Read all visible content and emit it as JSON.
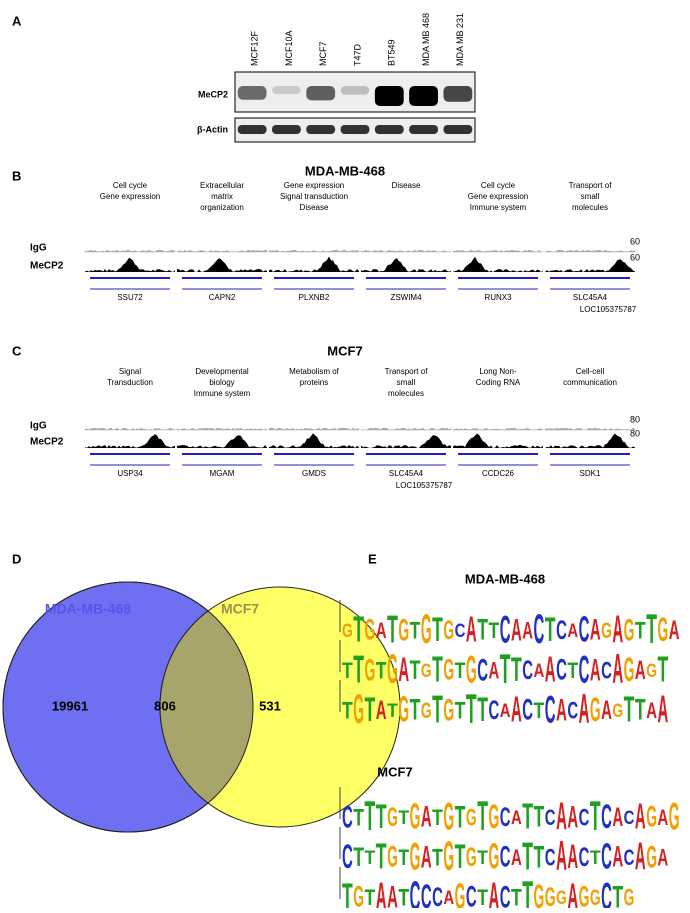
{
  "panel_a": {
    "label": "A",
    "lanes": [
      "MCF12F",
      "MCF10A",
      "MCF7",
      "T47D",
      "BT549",
      "MDA MB 468",
      "MDA MB 231"
    ],
    "rows": [
      "MeCP2",
      "β-Actin"
    ]
  },
  "panel_b": {
    "label": "B",
    "title": "MDA-MB-468",
    "tracks": [
      "IgG",
      "MeCP2"
    ],
    "scales": [
      "60",
      "60"
    ],
    "regions": [
      {
        "pathway": [
          "Cell cycle",
          "Gene expression"
        ],
        "genes": [
          "SSU72"
        ]
      },
      {
        "pathway": [
          "Extracellular",
          "matrix",
          "organization"
        ],
        "genes": [
          "CAPN2"
        ]
      },
      {
        "pathway": [
          "Gene expression",
          "Signal transduction",
          "Disease"
        ],
        "genes": [
          "PLXNB2"
        ]
      },
      {
        "pathway": [
          "Disease"
        ],
        "genes": [
          "ZSWIM4"
        ]
      },
      {
        "pathway": [
          "Cell cycle",
          "Gene expression",
          "Immune system"
        ],
        "genes": [
          "RUNX3"
        ]
      },
      {
        "pathway": [
          "Transport of",
          "small",
          "molecules"
        ],
        "genes": [
          "SLC45A4",
          "LOC105375787"
        ]
      }
    ]
  },
  "panel_c": {
    "label": "C",
    "title": "MCF7",
    "tracks": [
      "IgG",
      "MeCP2"
    ],
    "scales": [
      "80",
      "80"
    ],
    "regions": [
      {
        "pathway": [
          "Signal",
          "Transduction"
        ],
        "genes": [
          "USP34"
        ]
      },
      {
        "pathway": [
          "Developmental",
          "biology",
          "Immune system"
        ],
        "genes": [
          "MGAM"
        ]
      },
      {
        "pathway": [
          "Metabolism of",
          "proteins"
        ],
        "genes": [
          "GMDS"
        ]
      },
      {
        "pathway": [
          "Transport of",
          "small",
          "molecules"
        ],
        "genes": [
          "SLC45A4",
          "LOC105375787"
        ]
      },
      {
        "pathway": [
          "Long Non-",
          "Coding RNA"
        ],
        "genes": [
          "CCDC26"
        ]
      },
      {
        "pathway": [
          "Cell-cell",
          "communication"
        ],
        "genes": [
          "SDK1"
        ]
      }
    ]
  },
  "panel_d": {
    "label": "D",
    "sets": [
      {
        "name": "MDA-MB-468",
        "color": "#6f6ff2"
      },
      {
        "name": "MCF7",
        "color": "#ffff66"
      }
    ],
    "overlap_color": "#a8a56c",
    "counts": [
      19961,
      806,
      531
    ]
  },
  "panel_e": {
    "label": "E",
    "groups": [
      {
        "title": "MDA-MB-468",
        "motifs": [
          "GTGATGTGTGCATTCAACTCACAGAGTTGA",
          "TTGTGATGTGTGCATTCAACTCACAGAGT",
          "TGTATGTGTGTTTCAACTCACAGAGTTAA"
        ]
      },
      {
        "title": "MCF7",
        "motifs": [
          "CTTTGTGATGTGTGCATTCAACTCACAGAG",
          "CTTTGTGATGTGTGCATTCAACTCACAGA",
          "TGTAATCCCAGCTACTTGGGAGGCTG"
        ]
      }
    ]
  }
}
